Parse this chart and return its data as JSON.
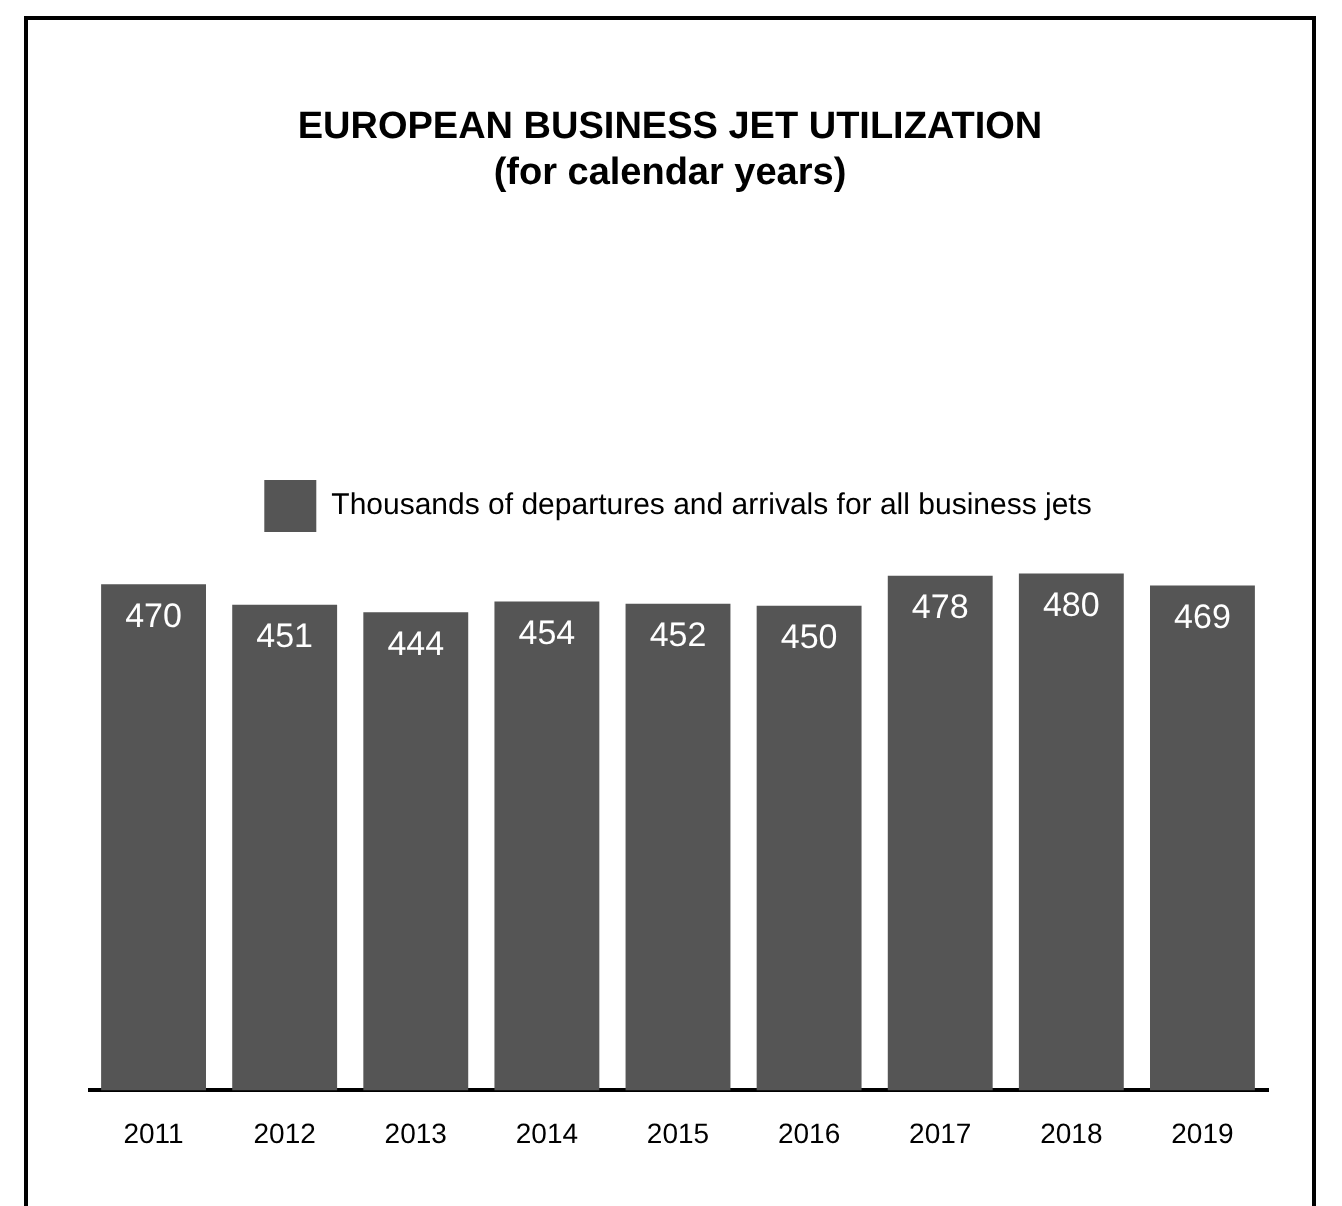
{
  "chart_data": {
    "type": "bar",
    "title": "EUROPEAN BUSINESS JET UTILIZATION",
    "subtitle": "(for calendar years)",
    "categories": [
      "2011",
      "2012",
      "2013",
      "2014",
      "2015",
      "2016",
      "2017",
      "2018",
      "2019"
    ],
    "series": [
      {
        "name": "Thousands of departures and arrivals for all business jets",
        "color": "#555555",
        "values": [
          470,
          451,
          444,
          454,
          452,
          450,
          478,
          480,
          469
        ]
      }
    ],
    "data_labels": true,
    "legend": "top",
    "grid": false
  }
}
